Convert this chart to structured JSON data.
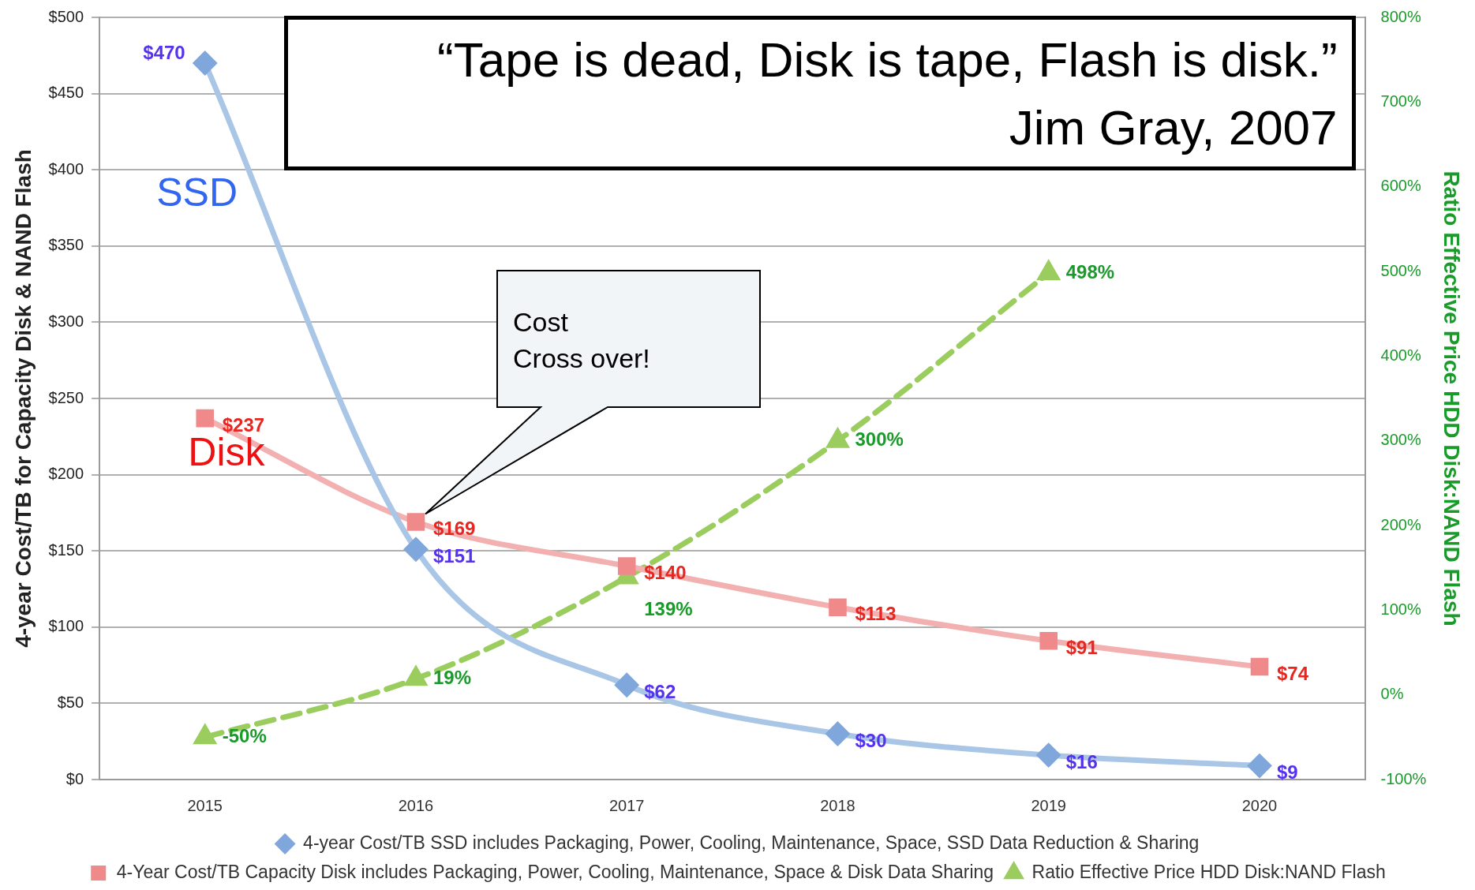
{
  "chart_data": {
    "type": "line",
    "ylabel": "4-year Cost/TB for Capacity Disk & NAND Flash",
    "y2label": "Ratio Effective Price HDD Disk:NAND Flash",
    "categories": [
      "2015",
      "2016",
      "2017",
      "2018",
      "2019",
      "2020"
    ],
    "series": [
      {
        "name": "4-year Cost/TB SSD includes Packaging, Power, Cooling, Maintenance, Space, SSD Data Reduction & Sharing",
        "color": "#7fa7dc",
        "marker": "diamond",
        "line_style": "solid",
        "values": [
          470,
          151,
          62,
          30,
          16,
          9
        ],
        "value_labels": [
          "$470",
          "$151",
          "$62",
          "$30",
          "$16",
          "$9"
        ]
      },
      {
        "name": "4-Year Cost/TB Capacity Disk includes Packaging, Power, Cooling, Maintenance, Space & Disk Data Sharing",
        "color": "#f08a8a",
        "marker": "square",
        "line_style": "solid",
        "values": [
          237,
          169,
          140,
          113,
          91,
          74
        ],
        "value_labels": [
          "$237",
          "$169",
          "$140",
          "$113",
          "$91",
          "$74"
        ]
      },
      {
        "name": "Ratio Effective Price HDD Disk:NAND Flash",
        "color": "#9acd5e",
        "marker": "triangle",
        "line_style": "dashed",
        "axis": "y2",
        "values": [
          -50,
          19,
          139,
          300,
          498,
          null
        ],
        "value_labels": [
          "-50%",
          "19%",
          "139%",
          "300%",
          "498%",
          null
        ]
      }
    ],
    "ylim": [
      0,
      500
    ],
    "yticks": [
      {
        "value": 0,
        "label": "$0"
      },
      {
        "value": 50,
        "label": "$50"
      },
      {
        "value": 100,
        "label": "$100"
      },
      {
        "value": 150,
        "label": "$150"
      },
      {
        "value": 200,
        "label": "$200"
      },
      {
        "value": 250,
        "label": "$250"
      },
      {
        "value": 300,
        "label": "$300"
      },
      {
        "value": 350,
        "label": "$350"
      },
      {
        "value": 400,
        "label": "$400"
      },
      {
        "value": 450,
        "label": "$450"
      },
      {
        "value": 500,
        "label": "$500"
      }
    ],
    "y2lim": [
      -100,
      800
    ],
    "y2ticks": [
      {
        "value": -100,
        "label": "-100%"
      },
      {
        "value": 0,
        "label": "0%"
      },
      {
        "value": 100,
        "label": "100%"
      },
      {
        "value": 200,
        "label": "200%"
      },
      {
        "value": 300,
        "label": "300%"
      },
      {
        "value": 400,
        "label": "400%"
      },
      {
        "value": 500,
        "label": "500%"
      },
      {
        "value": 600,
        "label": "600%"
      },
      {
        "value": 700,
        "label": "700%"
      },
      {
        "value": 800,
        "label": "800%"
      }
    ],
    "grid": "y",
    "legend": "bottom",
    "annotations": [
      "“Tape is dead, Disk is tape, Flash is disk.”",
      "Jim Gray, 2007",
      "SSD",
      "Disk",
      "Cost\nCross over!"
    ]
  }
}
